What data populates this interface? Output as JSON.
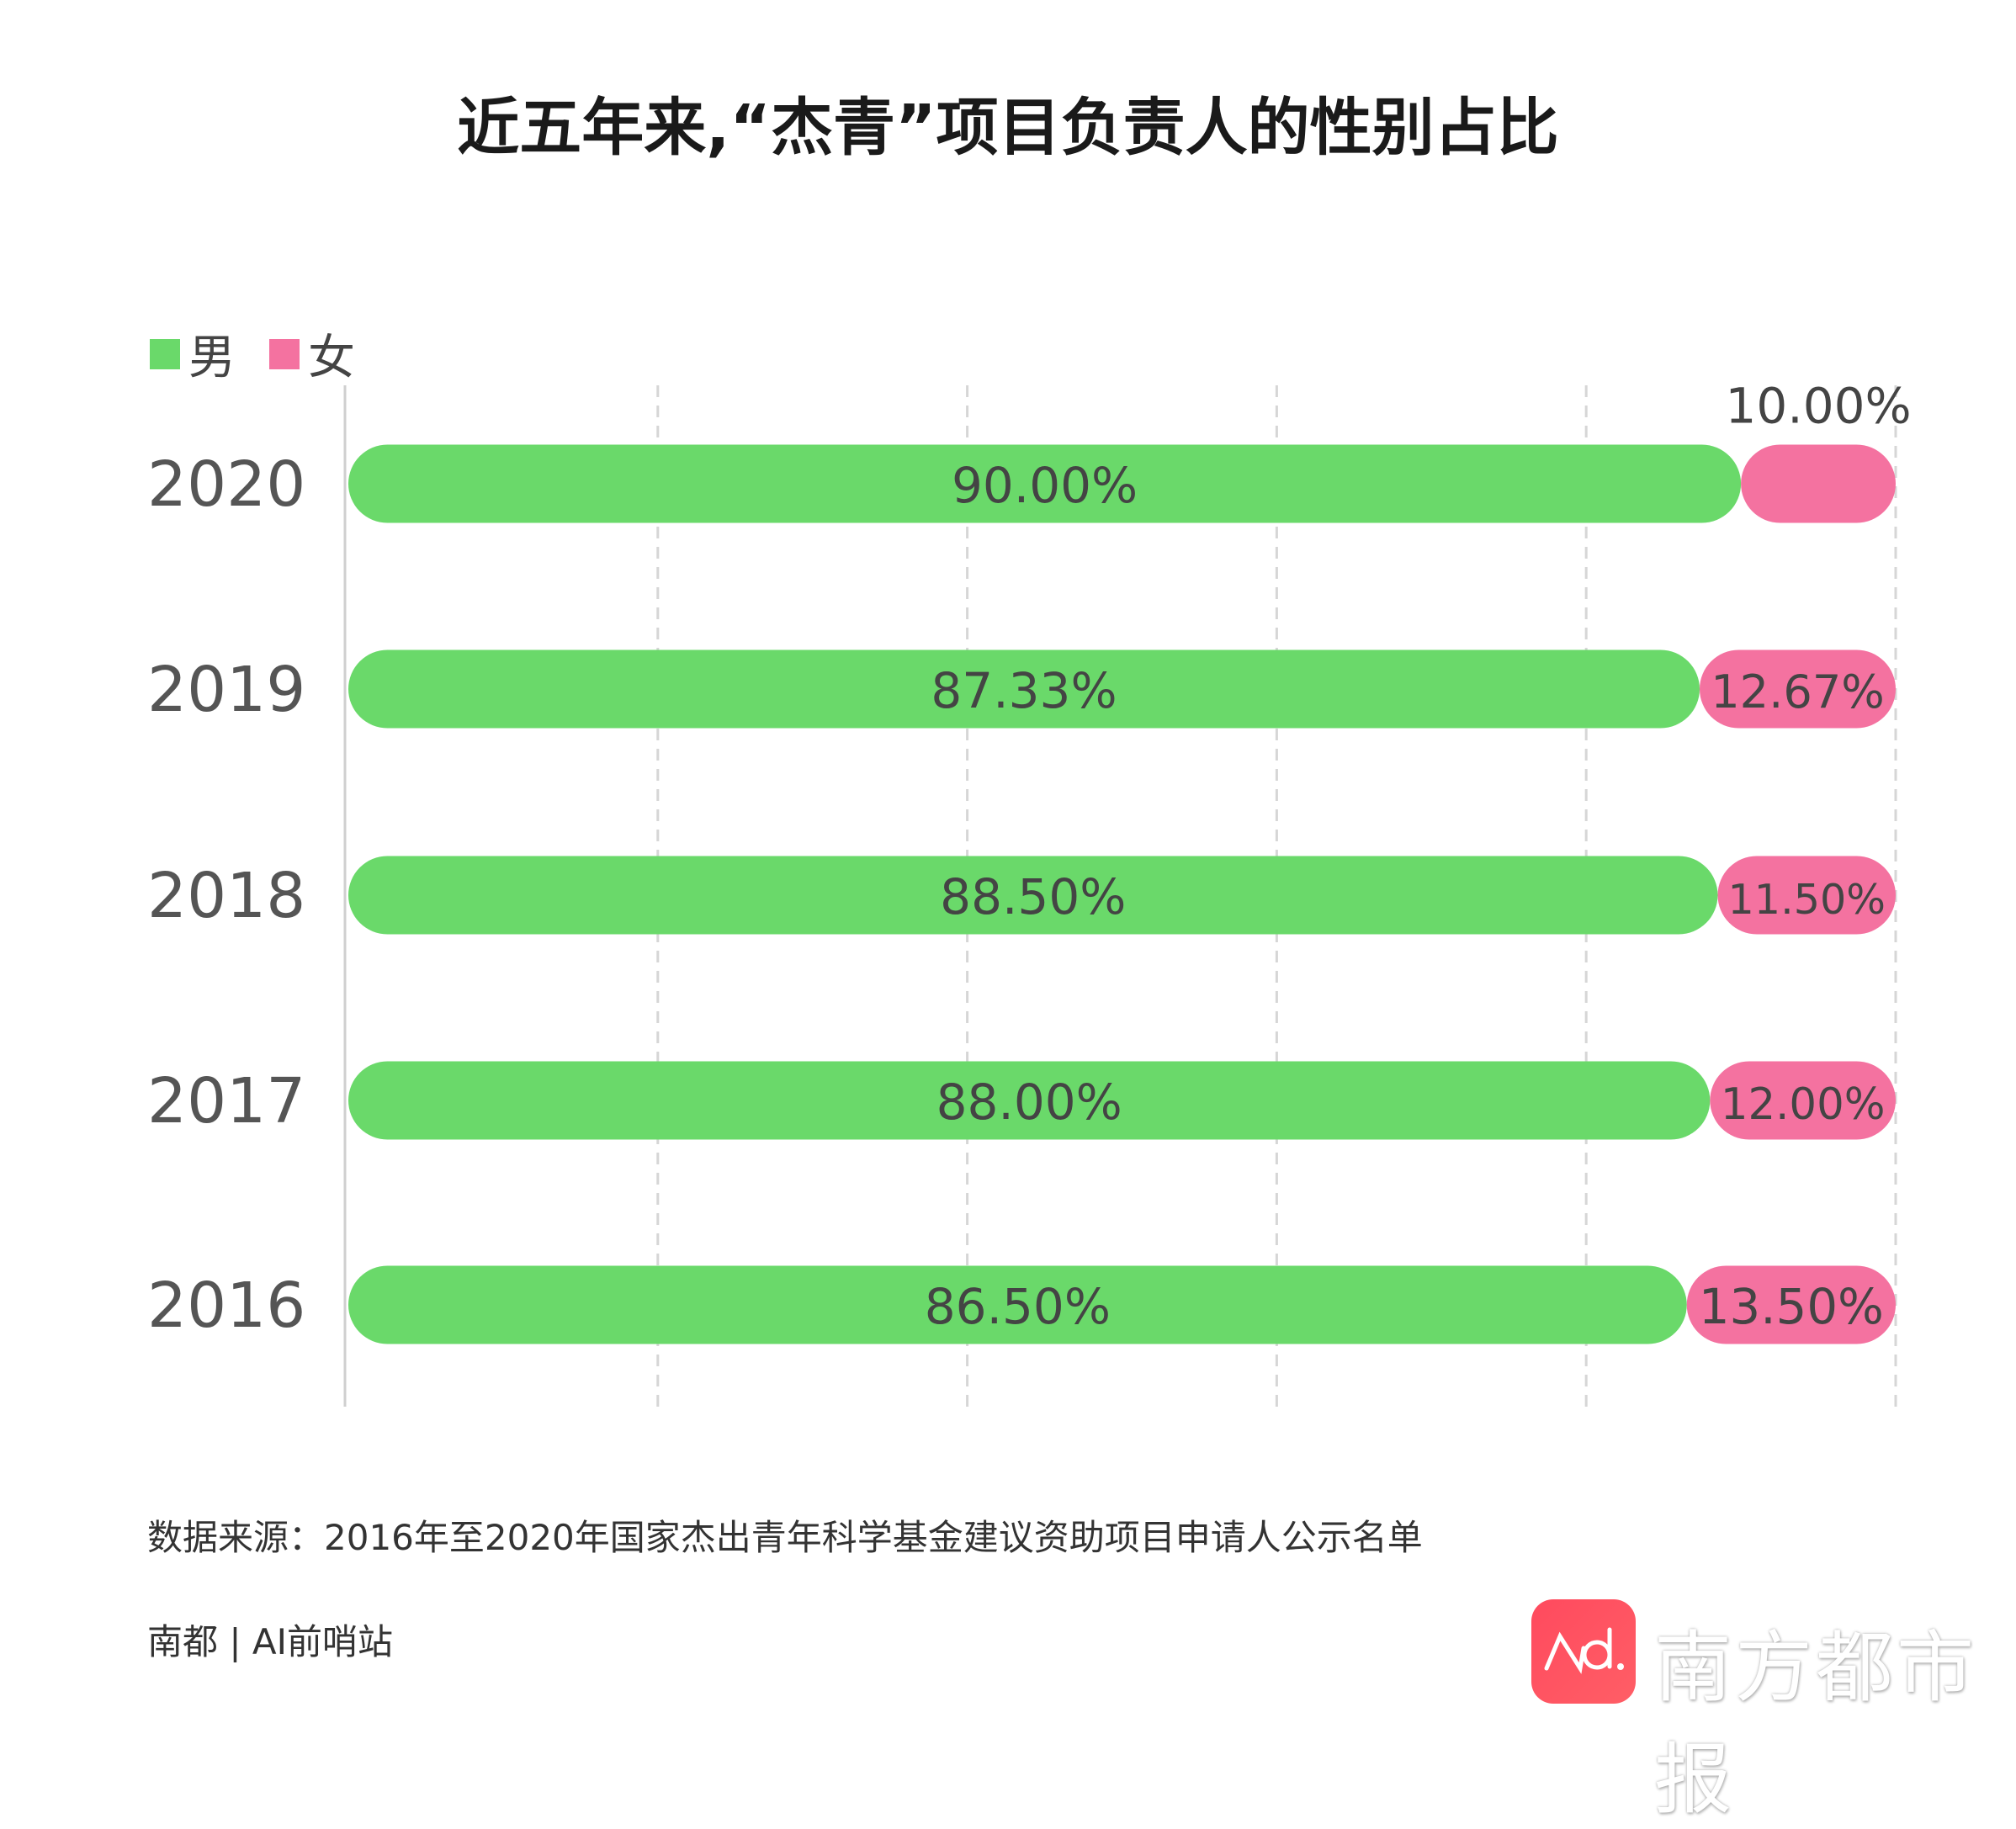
{
  "chart_data": {
    "type": "bar",
    "orientation": "horizontal",
    "stacked": true,
    "title": "近五年来,“杰青”项目负责人的性别占比",
    "categories": [
      "2020",
      "2019",
      "2018",
      "2017",
      "2016"
    ],
    "series": [
      {
        "name": "男",
        "color": "#6ad96a",
        "values": [
          90.0,
          87.33,
          88.5,
          88.0,
          86.5
        ],
        "labels": [
          "90.00%",
          "87.33%",
          "88.50%",
          "88.00%",
          "86.50%"
        ]
      },
      {
        "name": "女",
        "color": "#f472a0",
        "values": [
          10.0,
          12.67,
          11.5,
          12.0,
          13.5
        ],
        "labels": [
          "10.00%",
          "12.67%",
          "11.50%",
          "12.00%",
          "13.50%"
        ]
      }
    ],
    "xlim": [
      0,
      100
    ],
    "grid": true,
    "legend": "top-left"
  },
  "footer": {
    "source": "数据来源：2016年至2020年国家杰出青年科学基金建议资助项目申请人公示名单",
    "credit": "南都 | AI前哨站",
    "logo_text": "nd.",
    "brand": "南方都市报"
  }
}
